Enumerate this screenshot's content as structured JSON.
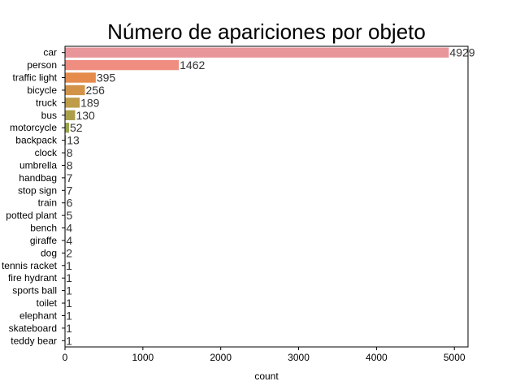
{
  "chart_data": {
    "type": "bar",
    "orientation": "horizontal",
    "title": "Número de apariciones por objeto",
    "xlabel": "count",
    "ylabel": "",
    "xlim": [
      0,
      5175
    ],
    "xticks": [
      0,
      1000,
      2000,
      3000,
      4000,
      5000
    ],
    "grid": false,
    "legend": "none",
    "categories": [
      "car",
      "person",
      "traffic light",
      "bicycle",
      "truck",
      "bus",
      "motorcycle",
      "backpack",
      "clock",
      "umbrella",
      "handbag",
      "stop sign",
      "train",
      "potted plant",
      "bench",
      "giraffe",
      "dog",
      "tennis racket",
      "fire hydrant",
      "sports ball",
      "toilet",
      "elephant",
      "skateboard",
      "teddy bear"
    ],
    "values": [
      4929,
      1462,
      395,
      256,
      189,
      130,
      52,
      13,
      8,
      8,
      7,
      7,
      6,
      5,
      4,
      4,
      2,
      1,
      1,
      1,
      1,
      1,
      1,
      1
    ],
    "colors": [
      "#e8969a",
      "#ee8d80",
      "#e58b4c",
      "#d29348",
      "#bf9c48",
      "#ab9f4a",
      "#9aa64a",
      "#83aa4a",
      "#6cad4c",
      "#55b15d",
      "#4ab37d",
      "#4ab294",
      "#4bb2a6",
      "#4cb1b6",
      "#4eb0c6",
      "#55add8",
      "#7aa8e8",
      "#a3a0ee",
      "#c493ee",
      "#d98ae8",
      "#e77ee0",
      "#ee7fd0",
      "#f088bd",
      "#f08fae"
    ]
  }
}
